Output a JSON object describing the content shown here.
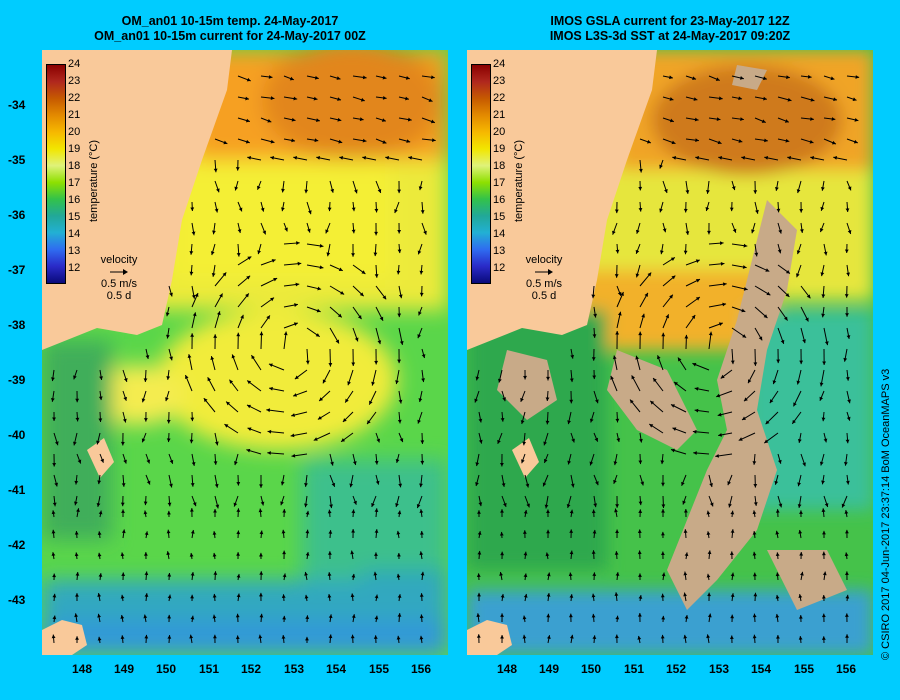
{
  "left_panel": {
    "title_line1": "OM_an01 10-15m temp. 24-May-2017",
    "title_line2": "OM_an01 10-15m current for 24-May-2017 00Z"
  },
  "right_panel": {
    "title_line1": "IMOS GSLA current for 23-May-2017 12Z",
    "title_line2": "IMOS L3S-3d SST at 24-May-2017 09:20Z"
  },
  "colorbar": {
    "ticks": [
      "24",
      "23",
      "22",
      "21",
      "20",
      "19",
      "18",
      "17",
      "16",
      "15",
      "14",
      "13",
      "12"
    ],
    "label": "temperature (°C)",
    "colors": [
      "#8a0000",
      "#b0281e",
      "#c65a00",
      "#e38a00",
      "#f6b800",
      "#f2e600",
      "#dff27a",
      "#8ee000",
      "#33c24a",
      "#22a898",
      "#22b0d4",
      "#2f6cf0",
      "#2a2ac8",
      "#0a0a7a"
    ]
  },
  "velocity_legend": {
    "label": "velocity",
    "speed": "0.5 m/s",
    "time": "0.5 d"
  },
  "axes": {
    "lat_ticks": [
      "-34",
      "-35",
      "-36",
      "-37",
      "-38",
      "-39",
      "-40",
      "-41",
      "-42",
      "-43"
    ],
    "lon_ticks": [
      "148",
      "149",
      "150",
      "151",
      "152",
      "153",
      "154",
      "155",
      "156"
    ]
  },
  "credit": "© CSIRO 2017   04-Jun-2017 23:37:14 BoM OceanMAPS v3",
  "colors": {
    "background": "#00ccff",
    "land": "#f9c99a",
    "no_data": "#c8aa88"
  }
}
